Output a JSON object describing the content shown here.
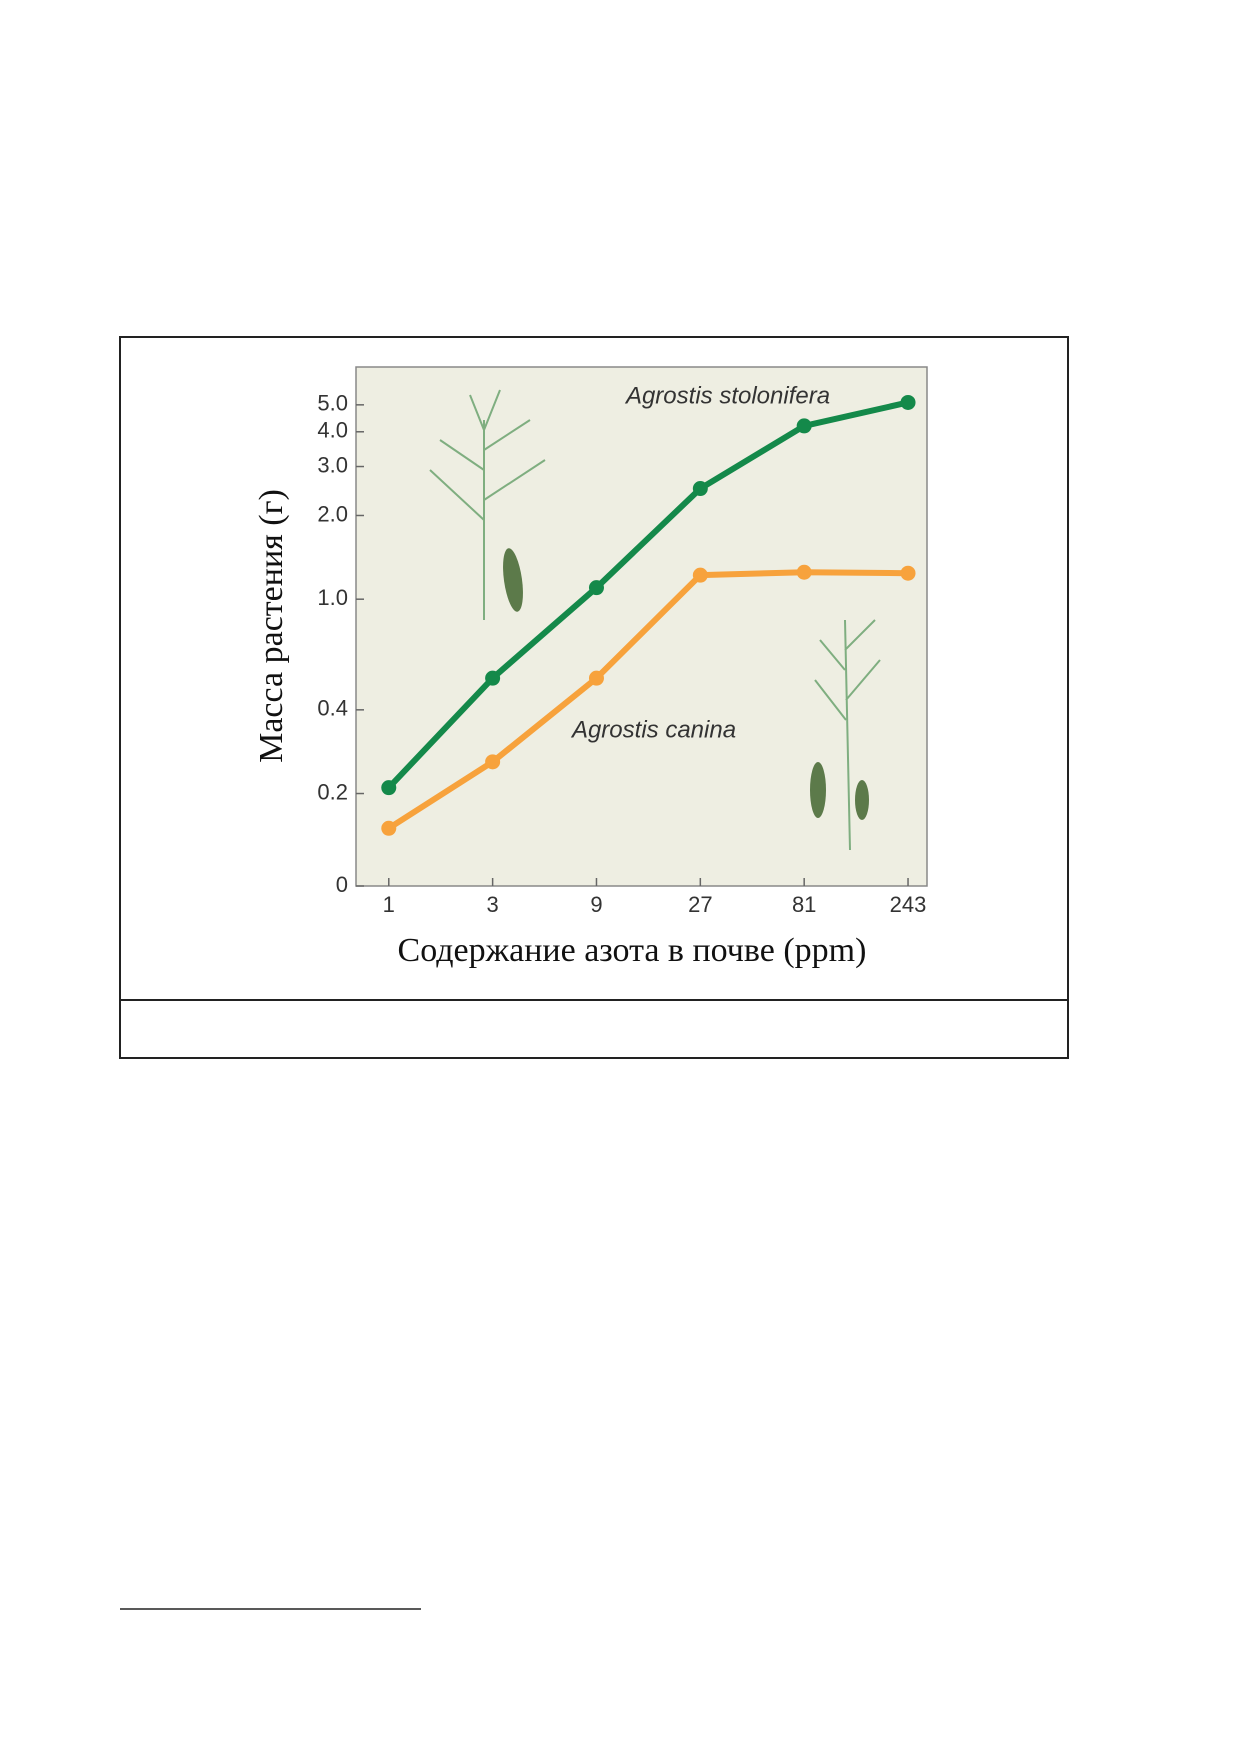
{
  "chart_data": {
    "type": "line",
    "x_label": "Содержание азота в почве (ppm)",
    "y_label": "Масса растения (г)",
    "x": [
      1,
      3,
      9,
      27,
      81,
      243
    ],
    "xlim": [
      0.707,
      297
    ],
    "xticks": [
      1,
      3,
      9,
      27,
      81,
      243
    ],
    "xscale": "log",
    "ylim": [
      0.093,
      6.84
    ],
    "yscale": "log",
    "yticks": [
      {
        "value": 0.093,
        "label": "0"
      },
      0.2,
      0.4,
      {
        "value": 1,
        "label": "1.0"
      },
      {
        "value": 2,
        "label": "2.0"
      },
      {
        "value": 3,
        "label": "3.0"
      },
      {
        "value": 4,
        "label": "4.0"
      },
      {
        "value": 5,
        "label": "5.0"
      }
    ],
    "grid": false,
    "background": "#eeeee2",
    "series": [
      {
        "name": "Agrostis stolonifera",
        "color": "#14894a",
        "values": [
          0.21,
          0.52,
          1.1,
          2.5,
          4.2,
          5.1
        ]
      },
      {
        "name": "Agrostis canina",
        "color": "#f7a23c",
        "values": [
          0.15,
          0.26,
          0.52,
          1.22,
          1.25,
          1.24
        ]
      }
    ]
  }
}
